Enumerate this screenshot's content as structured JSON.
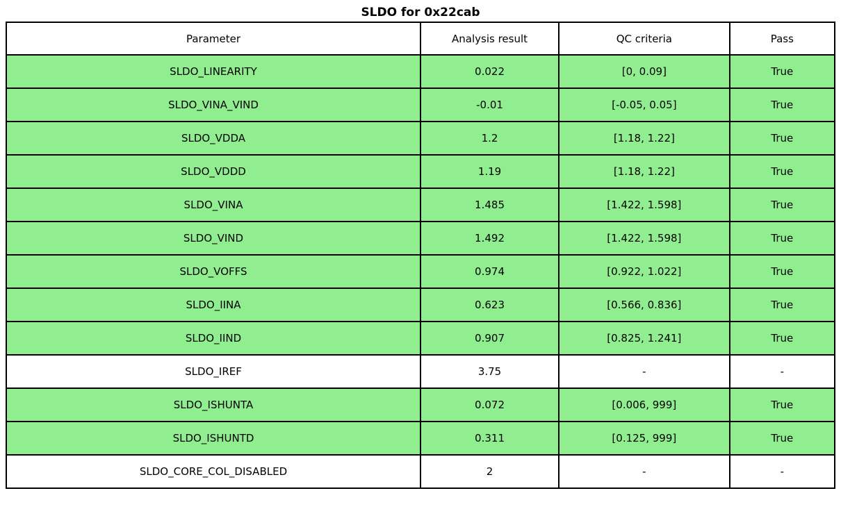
{
  "title": "SLDO for 0x22cab",
  "colors": {
    "pass_row_background": "#90EE90",
    "na_row_background": "#FFFFFF",
    "border": "#000000",
    "text": "#000000"
  },
  "chart_data": {
    "type": "table",
    "title": "SLDO for 0x22cab",
    "columns": [
      "Parameter",
      "Analysis result",
      "QC criteria",
      "Pass"
    ],
    "rows": [
      {
        "parameter": "SLDO_LINEARITY",
        "analysis_result": "0.022",
        "qc_criteria": "[0, 0.09]",
        "pass": "True",
        "highlighted": true
      },
      {
        "parameter": "SLDO_VINA_VIND",
        "analysis_result": "-0.01",
        "qc_criteria": "[-0.05, 0.05]",
        "pass": "True",
        "highlighted": true
      },
      {
        "parameter": "SLDO_VDDA",
        "analysis_result": "1.2",
        "qc_criteria": "[1.18, 1.22]",
        "pass": "True",
        "highlighted": true
      },
      {
        "parameter": "SLDO_VDDD",
        "analysis_result": "1.19",
        "qc_criteria": "[1.18, 1.22]",
        "pass": "True",
        "highlighted": true
      },
      {
        "parameter": "SLDO_VINA",
        "analysis_result": "1.485",
        "qc_criteria": "[1.422, 1.598]",
        "pass": "True",
        "highlighted": true
      },
      {
        "parameter": "SLDO_VIND",
        "analysis_result": "1.492",
        "qc_criteria": "[1.422, 1.598]",
        "pass": "True",
        "highlighted": true
      },
      {
        "parameter": "SLDO_VOFFS",
        "analysis_result": "0.974",
        "qc_criteria": "[0.922, 1.022]",
        "pass": "True",
        "highlighted": true
      },
      {
        "parameter": "SLDO_IINA",
        "analysis_result": "0.623",
        "qc_criteria": "[0.566, 0.836]",
        "pass": "True",
        "highlighted": true
      },
      {
        "parameter": "SLDO_IIND",
        "analysis_result": "0.907",
        "qc_criteria": "[0.825, 1.241]",
        "pass": "True",
        "highlighted": true
      },
      {
        "parameter": "SLDO_IREF",
        "analysis_result": "3.75",
        "qc_criteria": "-",
        "pass": "-",
        "highlighted": false
      },
      {
        "parameter": "SLDO_ISHUNTA",
        "analysis_result": "0.072",
        "qc_criteria": "[0.006, 999]",
        "pass": "True",
        "highlighted": true
      },
      {
        "parameter": "SLDO_ISHUNTD",
        "analysis_result": "0.311",
        "qc_criteria": "[0.125, 999]",
        "pass": "True",
        "highlighted": true
      },
      {
        "parameter": "SLDO_CORE_COL_DISABLED",
        "analysis_result": "2",
        "qc_criteria": "-",
        "pass": "-",
        "highlighted": false
      }
    ],
    "legend_position": "none",
    "grid": true
  }
}
